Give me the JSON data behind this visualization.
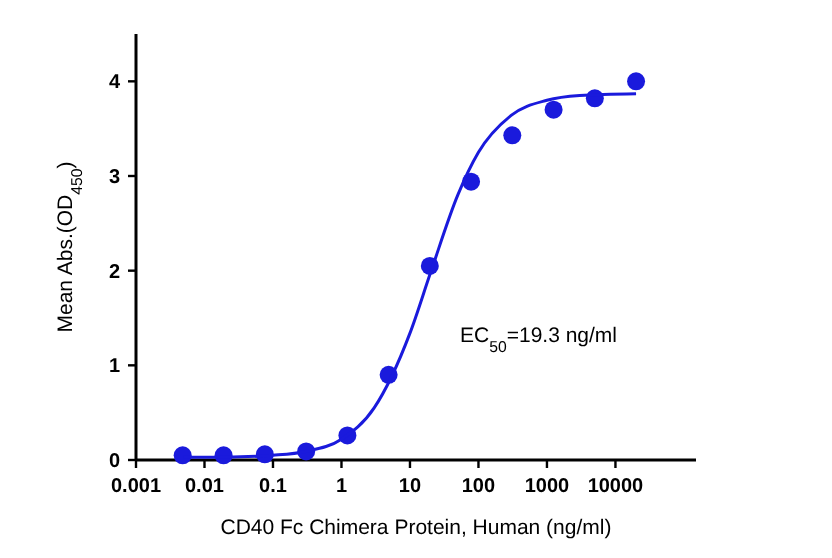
{
  "chart_data": {
    "type": "scatter",
    "xlabel": "CD40 Fc Chimera Protein, Human (ng/ml)",
    "ylabel": "Mean Abs.(OD$_{450}$)",
    "log": "x",
    "xlim": [
      0.001,
      150000
    ],
    "xticks": [
      0.001,
      0.01,
      0.1,
      1,
      10,
      100,
      1000,
      10000
    ],
    "ylim": [
      0,
      4.5
    ],
    "yticks": [
      0,
      1,
      2,
      3,
      4
    ],
    "grid": false,
    "marker": "circle",
    "x": [
      0.0048,
      0.019,
      0.076,
      0.305,
      1.22,
      4.88,
      19.5,
      78,
      312,
      1250,
      5000,
      20000
    ],
    "series": [
      {
        "color": "#1a1adc",
        "values": [
          0.05,
          0.05,
          0.06,
          0.09,
          0.26,
          0.9,
          2.05,
          2.94,
          3.43,
          3.7,
          3.82,
          4.0
        ]
      },
      {
        "type": "line",
        "color": "#1a1adc",
        "marker": "none",
        "line_style": "solid",
        "x": [
          0.005,
          0.02,
          0.1,
          0.3,
          1,
          3,
          10,
          20,
          50,
          100,
          300,
          1000,
          3000,
          20000
        ],
        "values": [
          0.03,
          0.03,
          0.05,
          0.09,
          0.22,
          0.55,
          1.34,
          1.98,
          2.8,
          3.25,
          3.64,
          3.8,
          3.85,
          3.87
        ]
      }
    ],
    "annotations": [
      "EC$_{50}$=19.3 ng/ml"
    ]
  }
}
